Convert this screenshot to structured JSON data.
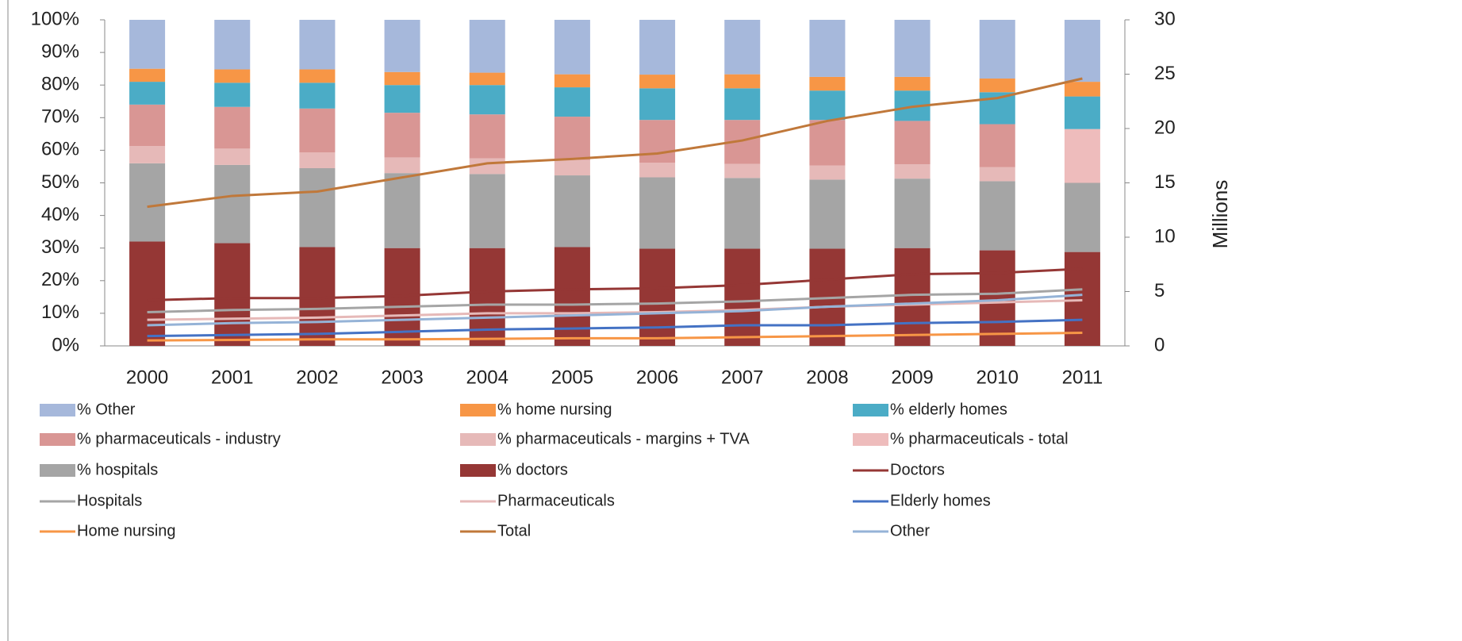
{
  "chart_data": {
    "type": "bar",
    "categories": [
      "2000",
      "2001",
      "2002",
      "2003",
      "2004",
      "2005",
      "2006",
      "2007",
      "2008",
      "2009",
      "2010",
      "2011"
    ],
    "ylim": [
      0,
      100
    ],
    "yticks": [
      {
        "value": 0,
        "label": "0%"
      },
      {
        "value": 10,
        "label": "10%"
      },
      {
        "value": 20,
        "label": "20%"
      },
      {
        "value": 30,
        "label": "30%"
      },
      {
        "value": 40,
        "label": "40%"
      },
      {
        "value": 50,
        "label": "50%"
      },
      {
        "value": 60,
        "label": "60%"
      },
      {
        "value": 70,
        "label": "70%"
      },
      {
        "value": 80,
        "label": "80%"
      },
      {
        "value": 90,
        "label": "90%"
      },
      {
        "value": 100,
        "label": "100%"
      }
    ],
    "y2lim": [
      0,
      30
    ],
    "y2ticks": [
      0,
      5,
      10,
      15,
      20,
      25,
      30
    ],
    "y2label": "Millions",
    "series": [
      {
        "name": "% Other",
        "type": "bar",
        "color": "#a6b8db",
        "values": [
          15,
          15.2,
          15.2,
          16,
          16.2,
          16.7,
          16.8,
          16.7,
          17.5,
          17.5,
          18,
          19
        ]
      },
      {
        "name": "% home nursing",
        "type": "bar",
        "color": "#f79646",
        "values": [
          4,
          4.1,
          4.1,
          4,
          3.8,
          4,
          4.2,
          4.3,
          4.2,
          4.2,
          4.2,
          4.5
        ]
      },
      {
        "name": "% elderly homes",
        "type": "bar",
        "color": "#4bacc6",
        "values": [
          7,
          7.4,
          7.9,
          8.5,
          9,
          9,
          9.7,
          9.7,
          9,
          9.3,
          9.8,
          10
        ]
      },
      {
        "name": "% pharmaceuticals - industry",
        "type": "bar",
        "color": "#d99694",
        "values": [
          12.7,
          12.8,
          13.5,
          13.7,
          13.5,
          13.3,
          13.1,
          13.5,
          14,
          13.3,
          13.2,
          null
        ]
      },
      {
        "name": "% pharmaceuticals - margins + TVA",
        "type": "bar",
        "color": "#e6b9b8",
        "values": [
          5.3,
          5,
          4.8,
          4.8,
          4.8,
          4.7,
          4.5,
          4.3,
          4.3,
          4.4,
          4.3,
          null
        ]
      },
      {
        "name": "% pharmaceuticals - total",
        "type": "bar",
        "color": "#eebcbc",
        "values": [
          null,
          null,
          null,
          null,
          null,
          null,
          null,
          null,
          null,
          null,
          null,
          16.5
        ]
      },
      {
        "name": "% hospitals",
        "type": "bar",
        "color": "#a5a5a5",
        "values": [
          24,
          24,
          24.2,
          23,
          22.7,
          22,
          21.9,
          21.7,
          21.2,
          21.3,
          21.2,
          21.2
        ]
      },
      {
        "name": "% doctors",
        "type": "bar",
        "color": "#953735",
        "values": [
          32,
          31.5,
          30.3,
          30,
          30,
          30.3,
          29.8,
          29.8,
          29.8,
          30,
          29.3,
          28.8
        ]
      },
      {
        "name": "Doctors",
        "type": "line",
        "axis": "y2",
        "color": "#953735",
        "values": [
          4.2,
          4.4,
          4.4,
          4.6,
          5.0,
          5.2,
          5.3,
          5.6,
          6.1,
          6.6,
          6.7,
          7.1
        ]
      },
      {
        "name": "Hospitals",
        "type": "line",
        "axis": "y2",
        "color": "#a5a5a5",
        "values": [
          3.1,
          3.3,
          3.4,
          3.6,
          3.8,
          3.8,
          3.9,
          4.1,
          4.4,
          4.7,
          4.8,
          5.2
        ]
      },
      {
        "name": "Pharmaceuticals",
        "type": "line",
        "axis": "y2",
        "color": "#e6b9b8",
        "values": [
          2.4,
          2.5,
          2.6,
          2.8,
          3.0,
          3.0,
          3.1,
          3.3,
          3.6,
          3.8,
          4.0,
          4.2
        ]
      },
      {
        "name": "Elderly homes",
        "type": "line",
        "axis": "y2",
        "color": "#4472c4",
        "values": [
          0.9,
          1.0,
          1.1,
          1.3,
          1.5,
          1.6,
          1.7,
          1.9,
          1.9,
          2.1,
          2.2,
          2.4
        ]
      },
      {
        "name": "Home nursing",
        "type": "line",
        "axis": "y2",
        "color": "#f79646",
        "values": [
          0.5,
          0.55,
          0.6,
          0.6,
          0.65,
          0.7,
          0.7,
          0.8,
          0.9,
          1.0,
          1.1,
          1.2
        ]
      },
      {
        "name": "Total",
        "type": "line",
        "axis": "y2",
        "color": "#c0783a",
        "values": [
          12.8,
          13.8,
          14.2,
          15.5,
          16.8,
          17.2,
          17.7,
          18.9,
          20.7,
          22,
          22.8,
          24.6
        ]
      },
      {
        "name": "Other",
        "type": "line",
        "axis": "y2",
        "color": "#95b3d7",
        "values": [
          1.9,
          2.1,
          2.2,
          2.4,
          2.6,
          2.8,
          3.0,
          3.2,
          3.6,
          3.9,
          4.2,
          4.7
        ]
      }
    ]
  }
}
